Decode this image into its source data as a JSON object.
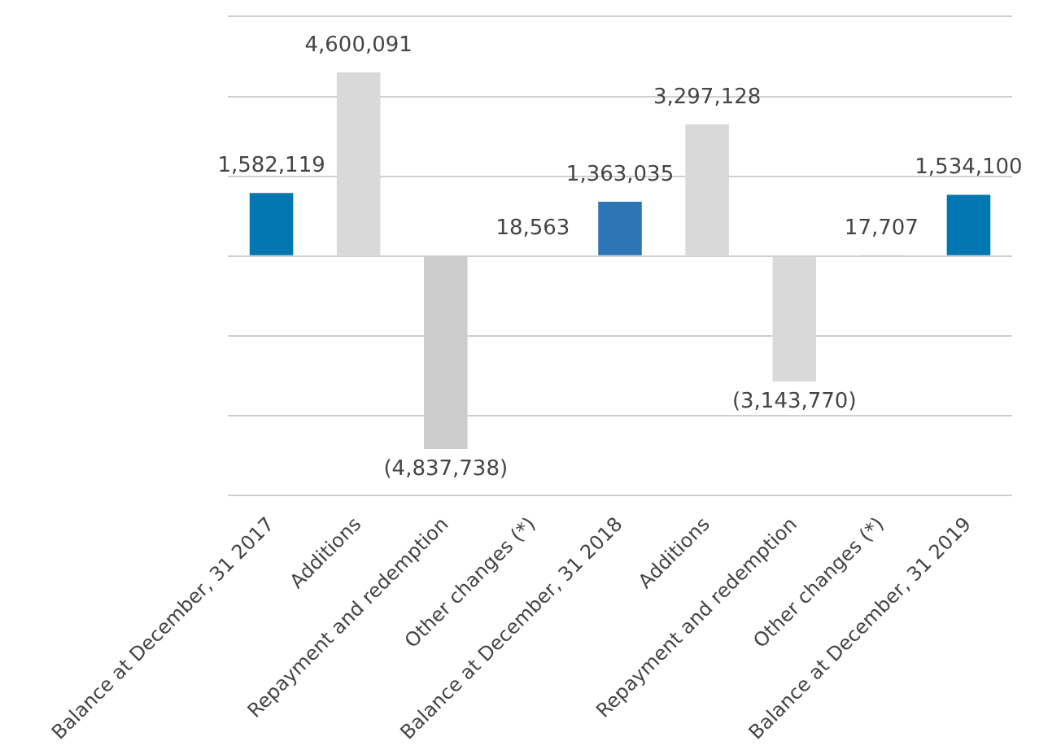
{
  "chart_data": {
    "type": "bar",
    "categories": [
      "Balance at December, 31 2017",
      "Additions",
      "Repayment and redemption",
      "Other changes (*)",
      "Balance at December, 31 2018",
      "Additions",
      "Repayment and redemption",
      "Other changes (*)",
      "Balance at December, 31 2019"
    ],
    "values": [
      1582119,
      4600091,
      -4837738,
      18563,
      1363035,
      3297128,
      -3143770,
      17707,
      1534100
    ],
    "colors": [
      "#0077b0",
      "#d9d9d9",
      "#cccccc",
      "#bbbbbb",
      "#2e75b6",
      "#d9d9d9",
      "#d9d9d9",
      "#bbbbbb",
      "#0077b0"
    ],
    "value_labels": [
      "1,582,119",
      "4,600,091",
      "(4,837,738)",
      "18,563",
      "1,363,035",
      "3,297,128",
      "(3,143,770)",
      "17,707",
      "1,534,100"
    ],
    "ylim": [
      -6000000,
      6000000
    ],
    "yticks": [
      {
        "value": -6000000,
        "label": null
      },
      {
        "value": -4000000,
        "label": null
      },
      {
        "value": -2000000,
        "label": null
      },
      {
        "value": 0,
        "label": null
      },
      {
        "value": 2000000,
        "label": null
      },
      {
        "value": 4000000,
        "label": null
      },
      {
        "value": 6000000,
        "label": null
      }
    ],
    "grid": "y",
    "legend": false
  }
}
